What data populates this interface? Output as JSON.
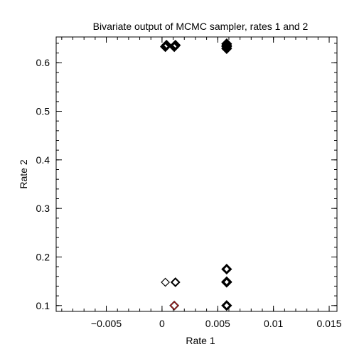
{
  "chart_data": {
    "type": "scatter",
    "title": "Bivariate output of MCMC sampler, rates 1 and 2",
    "xlabel": "Rate 1",
    "ylabel": "Rate 2",
    "xlim": [
      -0.0095,
      0.0157
    ],
    "ylim": [
      0.088,
      0.653
    ],
    "xticks": [
      -0.005,
      0,
      0.005,
      0.01,
      0.015
    ],
    "xtick_labels": [
      "−0.005",
      "0",
      "0.005",
      "0.01",
      "0.015"
    ],
    "yticks": [
      0.1,
      0.2,
      0.3,
      0.4,
      0.5,
      0.6
    ],
    "ytick_labels": [
      "0.1",
      "0.2",
      "0.3",
      "0.4",
      "0.5",
      "0.6"
    ],
    "grid": false,
    "marker": "diamond",
    "series": [
      {
        "color": "#000000",
        "points": [
          {
            "x": 0.0003,
            "y": 0.633,
            "weight": "heavy"
          },
          {
            "x": 0.0004,
            "y": 0.636,
            "weight": "heavy"
          },
          {
            "x": 0.0011,
            "y": 0.633,
            "weight": "heavy"
          },
          {
            "x": 0.0012,
            "y": 0.636,
            "weight": "heavy"
          },
          {
            "x": 0.0058,
            "y": 0.629,
            "weight": "heavy"
          },
          {
            "x": 0.0058,
            "y": 0.633,
            "weight": "heavy"
          },
          {
            "x": 0.0058,
            "y": 0.636,
            "weight": "heavy"
          },
          {
            "x": 0.0058,
            "y": 0.639,
            "weight": "heavy"
          },
          {
            "x": 0.0003,
            "y": 0.148,
            "weight": "light"
          },
          {
            "x": 0.0012,
            "y": 0.148,
            "weight": "medium"
          },
          {
            "x": 0.0058,
            "y": 0.175,
            "weight": "heavy"
          },
          {
            "x": 0.0058,
            "y": 0.148,
            "weight": "heavy"
          },
          {
            "x": 0.0058,
            "y": 0.149,
            "weight": "heavy"
          },
          {
            "x": 0.0058,
            "y": 0.1,
            "weight": "heavy"
          },
          {
            "x": 0.0011,
            "y": 0.1,
            "weight": "medium"
          }
        ]
      },
      {
        "color": "#b22222",
        "points": [
          {
            "x": 0.0011,
            "y": 0.1,
            "weight": "light"
          }
        ]
      }
    ]
  }
}
